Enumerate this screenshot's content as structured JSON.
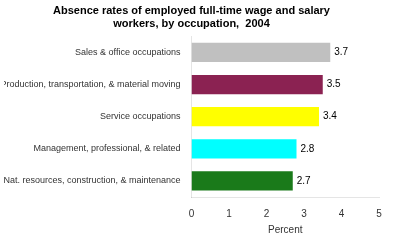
{
  "chart_data": {
    "type": "bar",
    "orientation": "horizontal",
    "title": "Absence rates of employed full-time wage and salary\nworkers, by occupation,  2004",
    "categories": [
      "Nat. resources, construction, & maintenance",
      "Management, professional, & related",
      "Service occupations",
      "Production, transportation, & material moving",
      "Sales & office occupations"
    ],
    "values": [
      2.7,
      2.8,
      3.4,
      3.5,
      3.7
    ],
    "colors": [
      "#1a7a1a",
      "#00ffff",
      "#ffff00",
      "#8b2252",
      "#c0c0c0"
    ],
    "xlabel": "Percent",
    "xlim": [
      0,
      5
    ],
    "xticks": [
      0,
      1,
      2,
      3,
      4,
      5
    ],
    "data_labels": true,
    "grid": false
  }
}
